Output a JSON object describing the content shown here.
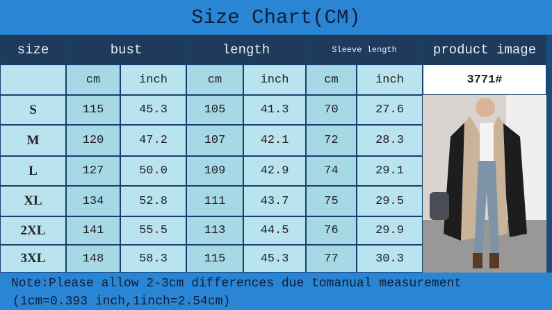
{
  "title": "Size Chart(CM)",
  "header": [
    "size",
    "bust",
    "length",
    "Sleeve length",
    "product image"
  ],
  "subheader": [
    "cm",
    "inch",
    "cm",
    "inch",
    "cm",
    "inch"
  ],
  "product_code": "3771#",
  "rows": [
    [
      "S",
      "115",
      "45.3",
      "105",
      "41.3",
      "70",
      "27.6"
    ],
    [
      "M",
      "120",
      "47.2",
      "107",
      "42.1",
      "72",
      "28.3"
    ],
    [
      "L",
      "127",
      "50.0",
      "109",
      "42.9",
      "74",
      "29.1"
    ],
    [
      "XL",
      "134",
      "52.8",
      "111",
      "43.7",
      "75",
      "29.5"
    ],
    [
      "2XL",
      "141",
      "55.5",
      "113",
      "44.5",
      "76",
      "29.9"
    ],
    [
      "3XL",
      "148",
      "58.3",
      "115",
      "45.3",
      "77",
      "30.3"
    ]
  ],
  "note": [
    "Note:Please allow 2-3cm differences due tomanual measurement",
    "(1cm=0.393 inch,1inch=2.54cm)"
  ]
}
